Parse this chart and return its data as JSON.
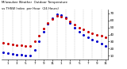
{
  "title": "Milwaukee Weather  Outdoor Temperature vs THSW Index  per Hour  (24 Hours)",
  "hours": [
    0,
    1,
    2,
    3,
    4,
    5,
    6,
    7,
    8,
    9,
    10,
    11,
    12,
    13,
    14,
    15,
    16,
    17,
    18,
    19,
    20,
    21,
    22,
    23
  ],
  "temp": [
    28,
    27,
    26,
    25,
    25,
    24,
    24,
    30,
    38,
    48,
    56,
    62,
    66,
    65,
    63,
    58,
    54,
    50,
    47,
    44,
    42,
    40,
    38,
    36
  ],
  "thsw": [
    15,
    14,
    13,
    12,
    11,
    10,
    10,
    18,
    30,
    44,
    55,
    63,
    68,
    67,
    64,
    56,
    50,
    44,
    40,
    36,
    33,
    30,
    27,
    24
  ],
  "temp_color": "#cc0000",
  "thsw_color": "#0000cc",
  "bg_color": "#ffffff",
  "grid_color": "#bbbbbb",
  "ylim": [
    5,
    75
  ],
  "yticks": [
    10,
    20,
    30,
    40,
    50,
    60,
    70
  ],
  "marker_size": 1.2,
  "title_fontsize": 2.8,
  "tick_fontsize": 3.0
}
